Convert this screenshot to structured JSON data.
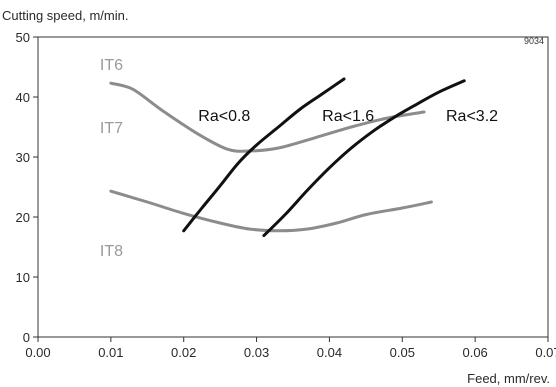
{
  "chart_data": {
    "type": "line",
    "title": "",
    "ylabel": "Cutting speed, m/min.",
    "xlabel": "Feed, mm/rev.",
    "reference": "9034",
    "xlim": [
      0,
      0.07
    ],
    "ylim": [
      0,
      50
    ],
    "x_ticks": [
      "0.00",
      "0.01",
      "0.02",
      "0.03",
      "0.04",
      "0.05",
      "0.06",
      "0.07"
    ],
    "y_ticks": [
      "0",
      "10",
      "20",
      "30",
      "40",
      "50"
    ],
    "grid": false,
    "zone_labels": [
      {
        "text": "IT6",
        "x": 0.0085,
        "y": 45.5
      },
      {
        "text": "IT7",
        "x": 0.0085,
        "y": 35.0
      },
      {
        "text": "IT8",
        "x": 0.0085,
        "y": 14.5
      }
    ],
    "series": [
      {
        "name": "",
        "color": "#8c8c8c",
        "x": [
          0.01,
          0.013,
          0.017,
          0.022,
          0.026,
          0.029,
          0.033,
          0.038,
          0.043,
          0.048,
          0.053
        ],
        "y": [
          42.3,
          41.3,
          37.8,
          33.8,
          31.3,
          31.0,
          31.5,
          33.2,
          35.0,
          36.5,
          37.5
        ]
      },
      {
        "name": "",
        "color": "#8c8c8c",
        "x": [
          0.01,
          0.015,
          0.02,
          0.025,
          0.029,
          0.033,
          0.037,
          0.041,
          0.045,
          0.05,
          0.054
        ],
        "y": [
          24.3,
          22.5,
          20.6,
          19.0,
          18.0,
          17.7,
          18.0,
          19.0,
          20.4,
          21.5,
          22.5
        ]
      },
      {
        "name": "Ra<0.8",
        "color": "#111111",
        "x": [
          0.02,
          0.0225,
          0.025,
          0.0275,
          0.03,
          0.033,
          0.036,
          0.039,
          0.042
        ],
        "y": [
          17.7,
          21.5,
          25.2,
          29.0,
          32.0,
          35.0,
          38.0,
          40.5,
          43.0
        ]
      },
      {
        "name": "Ra<1.6",
        "color": "#111111",
        "x": [
          0.031,
          0.034,
          0.037,
          0.04,
          0.043,
          0.046,
          0.049,
          0.052,
          0.055,
          0.0585
        ],
        "y": [
          16.9,
          20.5,
          24.5,
          28.2,
          31.5,
          34.3,
          36.7,
          38.8,
          40.8,
          42.7
        ]
      }
    ],
    "series_labels": [
      {
        "text": "Ra<0.8",
        "x": 0.022,
        "y": 37.0
      },
      {
        "text": "Ra<1.6",
        "x": 0.039,
        "y": 37.0
      },
      {
        "text": "Ra<3.2",
        "x": 0.056,
        "y": 37.0
      }
    ]
  }
}
